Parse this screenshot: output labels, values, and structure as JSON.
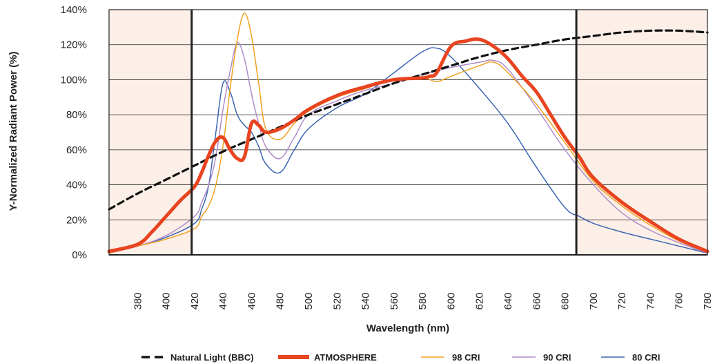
{
  "chart_data": {
    "type": "line",
    "xlabel": "Wavelength (nm)",
    "ylabel": "Y-Normalized Radiant Power (%)",
    "xlim": [
      360,
      780
    ],
    "ylim": [
      0,
      140
    ],
    "xticks": [
      380,
      400,
      420,
      440,
      460,
      480,
      500,
      520,
      540,
      560,
      580,
      600,
      620,
      640,
      660,
      680,
      700,
      720,
      740,
      760,
      780
    ],
    "yticks": [
      {
        "value": 0,
        "label": "0%"
      },
      {
        "value": 20,
        "label": "20%"
      },
      {
        "value": 40,
        "label": "40%"
      },
      {
        "value": 60,
        "label": "60%"
      },
      {
        "value": 80,
        "label": "80%"
      },
      {
        "value": 100,
        "label": "100%"
      },
      {
        "value": 120,
        "label": "120%"
      },
      {
        "value": 140,
        "label": "140%"
      }
    ],
    "grid": "horizontal",
    "legend_position": "bottom",
    "shaded_regions": [
      {
        "from": 360,
        "to": 418,
        "color": "#fcefe7"
      },
      {
        "from": 688,
        "to": 780,
        "color": "#fcefe7"
      }
    ],
    "series": [
      {
        "name": "Natural Light (BBC)",
        "color": "#111111",
        "style": "dashed",
        "x": [
          360,
          380,
          400,
          420,
          440,
          460,
          480,
          500,
          520,
          540,
          560,
          580,
          600,
          620,
          640,
          660,
          680,
          700,
          720,
          740,
          760,
          780
        ],
        "y": [
          26,
          35,
          43,
          51,
          59,
          66,
          73,
          80,
          86,
          92,
          98,
          103,
          108,
          113,
          117,
          120,
          123,
          125,
          127,
          128,
          128,
          127
        ]
      },
      {
        "name": "ATMOSPHERE",
        "color": "#e8441f",
        "style": "thick",
        "x": [
          360,
          380,
          390,
          400,
          410,
          420,
          425,
          430,
          435,
          440,
          445,
          450,
          455,
          460,
          465,
          470,
          480,
          490,
          500,
          520,
          540,
          560,
          580,
          585,
          590,
          600,
          610,
          620,
          630,
          640,
          650,
          660,
          670,
          680,
          690,
          700,
          720,
          740,
          760,
          780
        ],
        "y": [
          2,
          6,
          13,
          22,
          31,
          39,
          47,
          57,
          65,
          67,
          60,
          55,
          56,
          75,
          74,
          70,
          72,
          77,
          83,
          91,
          96,
          100,
          101,
          102,
          104,
          119,
          122,
          123,
          119,
          112,
          102,
          93,
          80,
          67,
          56,
          44,
          30,
          19,
          9,
          2
        ]
      },
      {
        "name": "98 CRI",
        "color": "#f0a020",
        "style": "thin",
        "x": [
          360,
          380,
          400,
          420,
          425,
          430,
          435,
          440,
          445,
          450,
          455,
          460,
          465,
          470,
          480,
          490,
          500,
          520,
          540,
          560,
          580,
          590,
          600,
          620,
          630,
          640,
          660,
          680,
          700,
          720,
          740,
          760,
          780
        ],
        "y": [
          1,
          5,
          9,
          15,
          22,
          28,
          40,
          62,
          95,
          123,
          138,
          125,
          98,
          72,
          66,
          75,
          82,
          90,
          95,
          100,
          101,
          99,
          102,
          108,
          110,
          104,
          86,
          64,
          42,
          28,
          17,
          8,
          2
        ]
      },
      {
        "name": "90 CRI",
        "color": "#b08cc8",
        "style": "thin",
        "x": [
          360,
          380,
          400,
          420,
          425,
          430,
          435,
          440,
          445,
          450,
          455,
          460,
          465,
          470,
          480,
          490,
          500,
          520,
          540,
          560,
          580,
          590,
          600,
          620,
          630,
          640,
          660,
          680,
          700,
          720,
          740,
          760,
          780
        ],
        "y": [
          1,
          5,
          11,
          22,
          30,
          40,
          56,
          83,
          105,
          121,
          112,
          92,
          75,
          62,
          55,
          67,
          80,
          88,
          94,
          98,
          103,
          105,
          107,
          110,
          111,
          106,
          84,
          60,
          40,
          24,
          14,
          7,
          1
        ]
      },
      {
        "name": "80 CRI",
        "color": "#3a64b0",
        "style": "thin",
        "x": [
          360,
          380,
          400,
          420,
          425,
          430,
          435,
          440,
          445,
          450,
          455,
          460,
          465,
          470,
          480,
          490,
          500,
          520,
          540,
          560,
          580,
          590,
          600,
          620,
          640,
          660,
          680,
          690,
          700,
          720,
          740,
          760,
          780
        ],
        "y": [
          1,
          5,
          10,
          18,
          26,
          40,
          70,
          98,
          93,
          80,
          74,
          70,
          62,
          52,
          47,
          60,
          72,
          84,
          92,
          104,
          116,
          118,
          113,
          95,
          75,
          50,
          27,
          22,
          18,
          13,
          9,
          5,
          1
        ]
      }
    ]
  }
}
